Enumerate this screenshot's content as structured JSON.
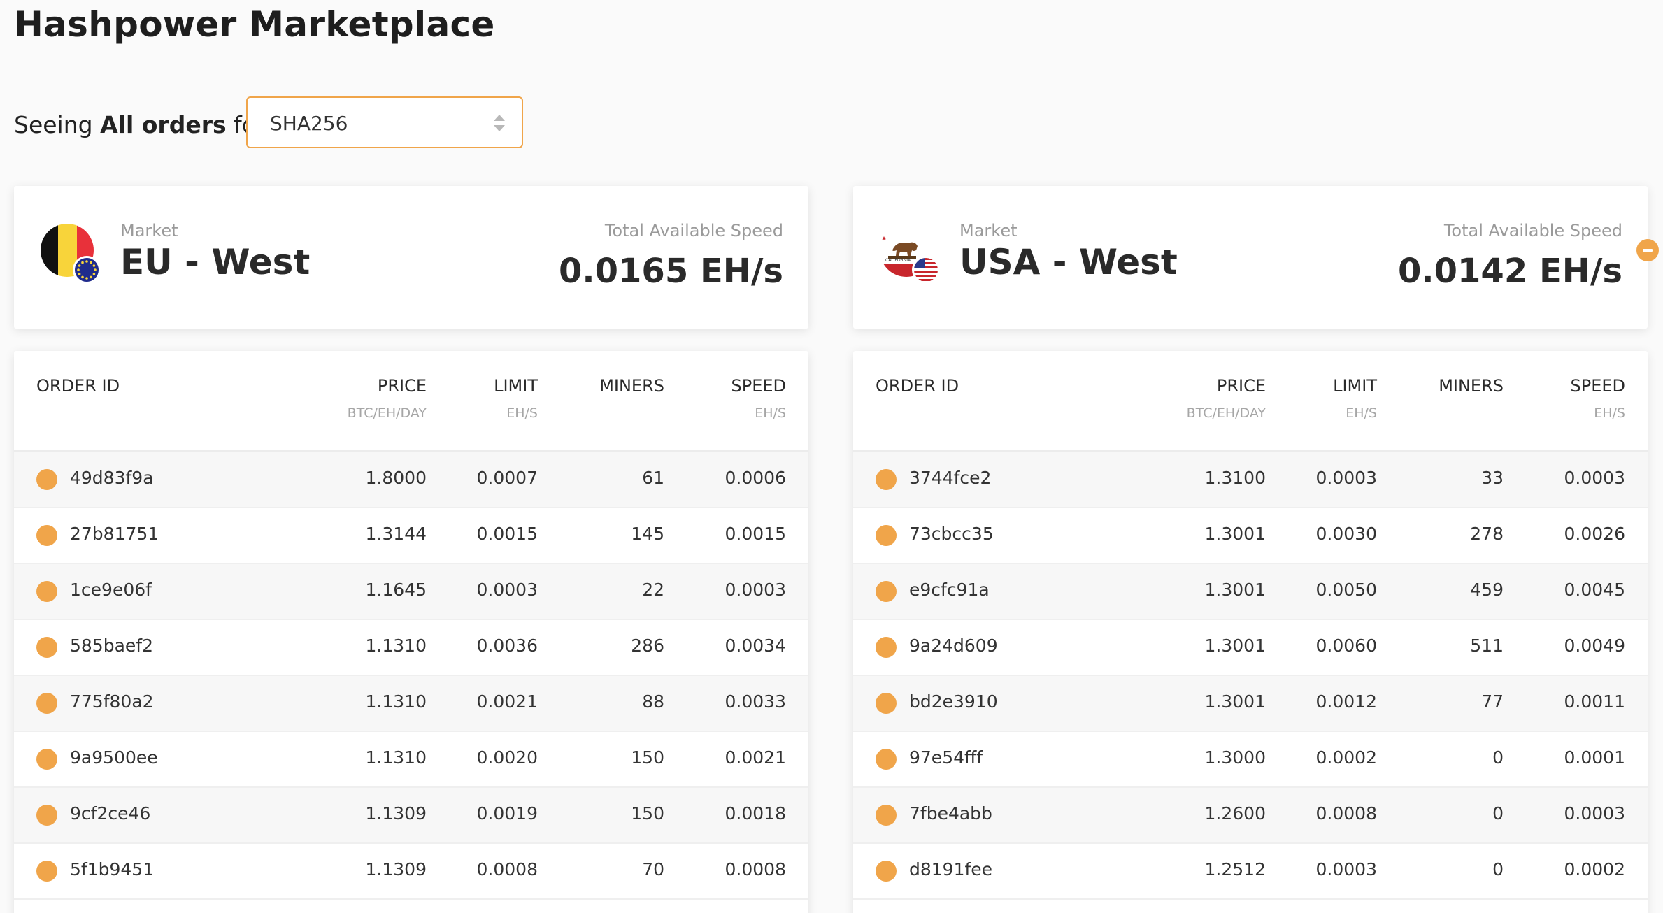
{
  "page": {
    "title": "Hashpower Marketplace"
  },
  "filter": {
    "prefix": "Seeing",
    "bold": "All orders",
    "suffix": "for",
    "algorithm": "SHA256"
  },
  "colors": {
    "accent": "#f0a54a",
    "background": "#fafafa",
    "card": "#ffffff",
    "row_alt": "#f7f7f7"
  },
  "icons": {
    "eu_flag": "belgium-eu-flag-icon",
    "usa_flag": "california-usa-flag-icon",
    "collapse": "minus-circle-icon",
    "select_arrows": "sort-arrows-icon",
    "order_status": "status-dot-icon"
  },
  "table_headers": {
    "order_id": "ORDER ID",
    "price": "PRICE",
    "price_unit": "BTC/EH/DAY",
    "limit": "LIMIT",
    "limit_unit": "EH/S",
    "miners": "MINERS",
    "speed": "SPEED",
    "speed_unit": "EH/S"
  },
  "markets": [
    {
      "label": "Market",
      "name": "EU - West",
      "speed_label": "Total Available Speed",
      "speed_value": "0.0165 EH/s",
      "orders": [
        {
          "id": "49d83f9a",
          "price": "1.8000",
          "limit": "0.0007",
          "miners": "61",
          "speed": "0.0006"
        },
        {
          "id": "27b81751",
          "price": "1.3144",
          "limit": "0.0015",
          "miners": "145",
          "speed": "0.0015"
        },
        {
          "id": "1ce9e06f",
          "price": "1.1645",
          "limit": "0.0003",
          "miners": "22",
          "speed": "0.0003"
        },
        {
          "id": "585baef2",
          "price": "1.1310",
          "limit": "0.0036",
          "miners": "286",
          "speed": "0.0034"
        },
        {
          "id": "775f80a2",
          "price": "1.1310",
          "limit": "0.0021",
          "miners": "88",
          "speed": "0.0033"
        },
        {
          "id": "9a9500ee",
          "price": "1.1310",
          "limit": "0.0020",
          "miners": "150",
          "speed": "0.0021"
        },
        {
          "id": "9cf2ce46",
          "price": "1.1309",
          "limit": "0.0019",
          "miners": "150",
          "speed": "0.0018"
        },
        {
          "id": "5f1b9451",
          "price": "1.1309",
          "limit": "0.0008",
          "miners": "70",
          "speed": "0.0008"
        }
      ]
    },
    {
      "label": "Market",
      "name": "USA - West",
      "speed_label": "Total Available Speed",
      "speed_value": "0.0142 EH/s",
      "orders": [
        {
          "id": "3744fce2",
          "price": "1.3100",
          "limit": "0.0003",
          "miners": "33",
          "speed": "0.0003"
        },
        {
          "id": "73cbcc35",
          "price": "1.3001",
          "limit": "0.0030",
          "miners": "278",
          "speed": "0.0026"
        },
        {
          "id": "e9cfc91a",
          "price": "1.3001",
          "limit": "0.0050",
          "miners": "459",
          "speed": "0.0045"
        },
        {
          "id": "9a24d609",
          "price": "1.3001",
          "limit": "0.0060",
          "miners": "511",
          "speed": "0.0049"
        },
        {
          "id": "bd2e3910",
          "price": "1.3001",
          "limit": "0.0012",
          "miners": "77",
          "speed": "0.0011"
        },
        {
          "id": "97e54fff",
          "price": "1.3000",
          "limit": "0.0002",
          "miners": "0",
          "speed": "0.0001"
        },
        {
          "id": "7fbe4abb",
          "price": "1.2600",
          "limit": "0.0008",
          "miners": "0",
          "speed": "0.0003"
        },
        {
          "id": "d8191fee",
          "price": "1.2512",
          "limit": "0.0003",
          "miners": "0",
          "speed": "0.0002"
        }
      ]
    }
  ]
}
